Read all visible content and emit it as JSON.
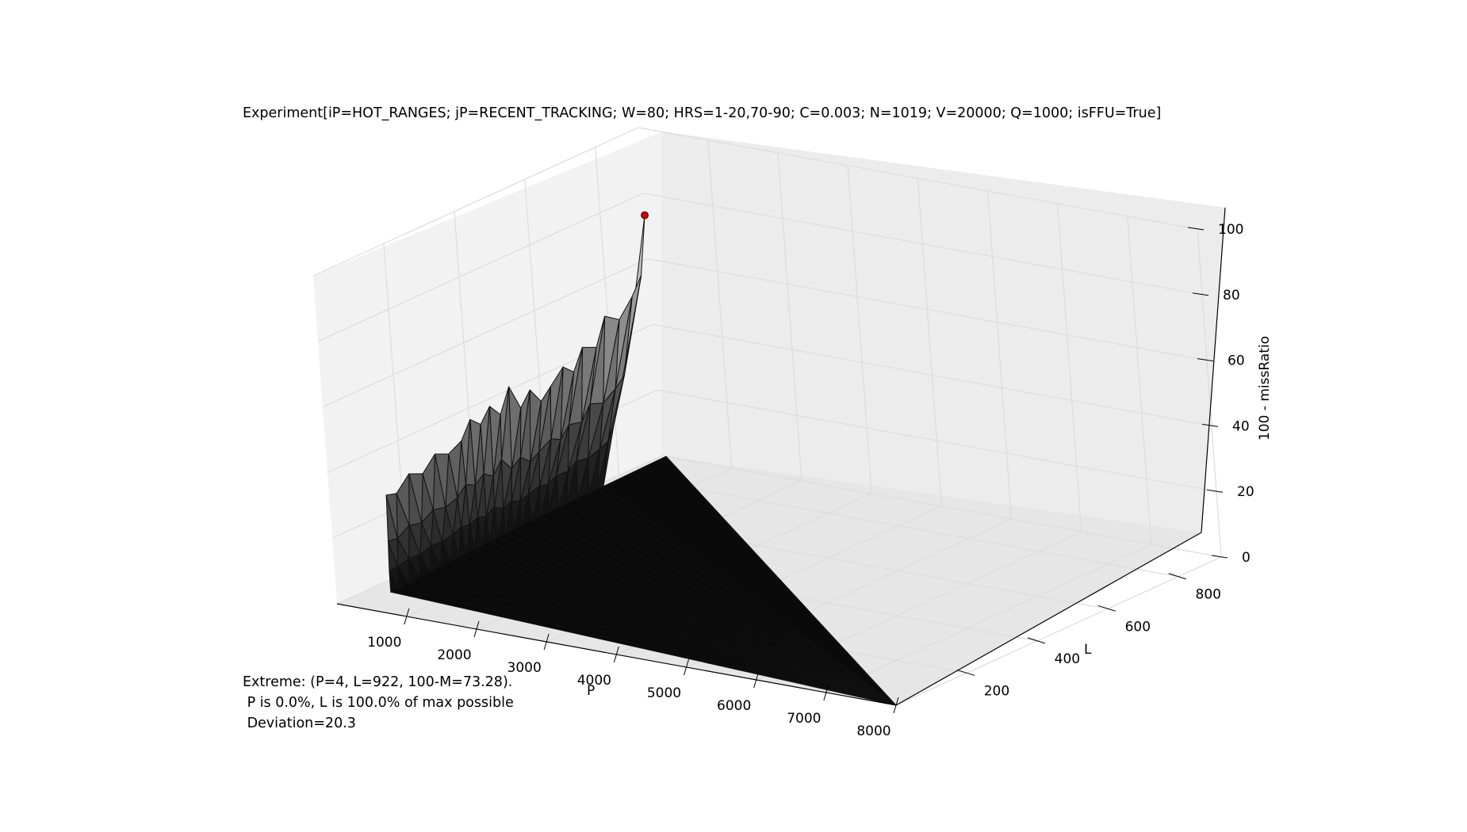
{
  "chart_data": {
    "type": "surface3d",
    "title": "Experiment[iP=HOT_RANGES; jP=RECENT_TRACKING; W=80; HRS=1-20,70-90; C=0.003; N=1019; V=20000; Q=1000; isFFU=True]",
    "xlabel": "P",
    "ylabel": "L",
    "zlabel": "100 - missRatio",
    "xlim": [
      4,
      8000
    ],
    "ylim": [
      0,
      922
    ],
    "zlim": [
      0,
      100
    ],
    "xticks": [
      "1000",
      "2000",
      "3000",
      "4000",
      "5000",
      "6000",
      "7000",
      "8000"
    ],
    "yticks": [
      "200",
      "400",
      "600",
      "800"
    ],
    "zticks": [
      "0",
      "20",
      "40",
      "60",
      "80",
      "100"
    ],
    "grid": true,
    "colormap": "grayscale",
    "extreme_point": {
      "P": 4,
      "L": 922,
      "z": 73.28,
      "color": "#cc0000"
    },
    "annotation": [
      "Extreme: (P=4, L=922, 100-M=73.28).",
      " P is 0.0%, L is 100.0% of max possible",
      " Deviation=20.3"
    ]
  }
}
